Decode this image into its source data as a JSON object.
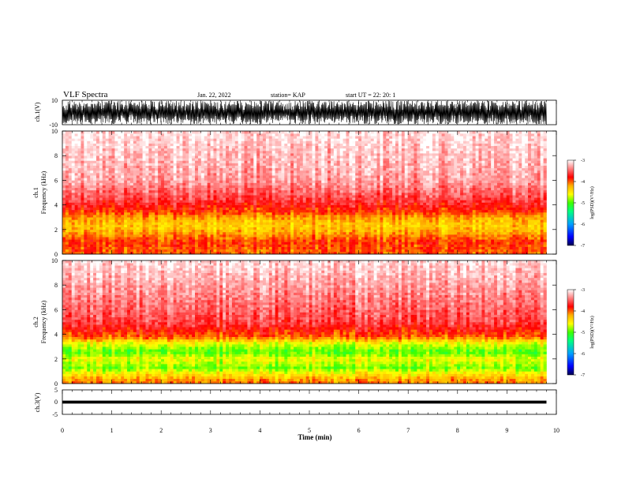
{
  "header": {
    "title": "VLF Spectra",
    "date": "Jan. 22, 2022",
    "station": "station= KAP",
    "start": "start  UT =   22: 20: 1"
  },
  "colors": {
    "axis": "#000000",
    "background": "#ffffff",
    "colormap": [
      "#000070",
      "#0000ff",
      "#00a0ff",
      "#00ff80",
      "#40ff00",
      "#ffff00",
      "#ffb000",
      "#ff0000",
      "#ffffff"
    ]
  },
  "chart_data": [
    {
      "type": "line",
      "panel": "ch1-waveform",
      "ylabel": "ch.1(V)",
      "ylim": [
        -10,
        10
      ],
      "yticks": [
        "10",
        "-10"
      ],
      "xlim": [
        0,
        10
      ],
      "description_values": {
        "amplitude_min": -10,
        "amplitude_max": 10
      }
    },
    {
      "type": "heatmap",
      "panel": "ch1-spectrogram",
      "ylabel": "ch.1\nFrequency  (kHz)",
      "ylim": [
        0,
        10
      ],
      "yticks": [
        "0",
        "2",
        "4",
        "6",
        "8",
        "10"
      ],
      "xlim": [
        0,
        10
      ],
      "colorbar": {
        "label": "log(PSD)(V²/Hz)",
        "range": [
          -7,
          -3
        ],
        "ticks": [
          "-3",
          "-4",
          "-5",
          "-6",
          "-7"
        ]
      },
      "band_profile": [
        {
          "f_khz": 0.2,
          "level": -4.0
        },
        {
          "f_khz": 1.0,
          "level": -3.9
        },
        {
          "f_khz": 2.0,
          "level": -4.3
        },
        {
          "f_khz": 2.4,
          "level": -4.35
        },
        {
          "f_khz": 3.0,
          "level": -4.2
        },
        {
          "f_khz": 3.5,
          "level": -3.9
        },
        {
          "f_khz": 4.5,
          "level": -3.6
        },
        {
          "f_khz": 6.0,
          "level": -3.3
        },
        {
          "f_khz": 10.0,
          "level": -3.1
        }
      ]
    },
    {
      "type": "heatmap",
      "panel": "ch2-spectrogram",
      "ylabel": "ch.2\nFrequency  (kHz)",
      "ylim": [
        0,
        10
      ],
      "yticks": [
        "0",
        "2",
        "4",
        "6",
        "8",
        "10"
      ],
      "xlim": [
        0,
        10
      ],
      "colorbar": {
        "label": "log(PSD)(V²/Hz)",
        "range": [
          -7,
          -3
        ],
        "ticks": [
          "-3",
          "-4",
          "-5",
          "-6",
          "-7"
        ]
      },
      "band_profile": [
        {
          "f_khz": 0.2,
          "level": -4.1
        },
        {
          "f_khz": 0.8,
          "level": -4.5
        },
        {
          "f_khz": 1.3,
          "level": -4.9
        },
        {
          "f_khz": 2.0,
          "level": -4.6
        },
        {
          "f_khz": 2.6,
          "level": -5.0
        },
        {
          "f_khz": 3.3,
          "level": -4.6
        },
        {
          "f_khz": 3.8,
          "level": -4.0
        },
        {
          "f_khz": 5.0,
          "level": -3.6
        },
        {
          "f_khz": 10.0,
          "level": -3.1
        }
      ]
    },
    {
      "type": "line",
      "panel": "ch3-waveform",
      "ylabel": "ch.3(V)",
      "ylim": [
        -5,
        5
      ],
      "yticks": [
        "5",
        "0",
        "-5"
      ],
      "xlim": [
        0,
        10
      ],
      "description_values": {
        "amplitude_min": -0.6,
        "amplitude_max": 0.6
      }
    }
  ],
  "xaxis": {
    "label": "Time  (min)",
    "ticks": [
      "0",
      "1",
      "2",
      "3",
      "4",
      "5",
      "6",
      "7",
      "8",
      "9",
      "10"
    ],
    "data_end": 9.8
  }
}
